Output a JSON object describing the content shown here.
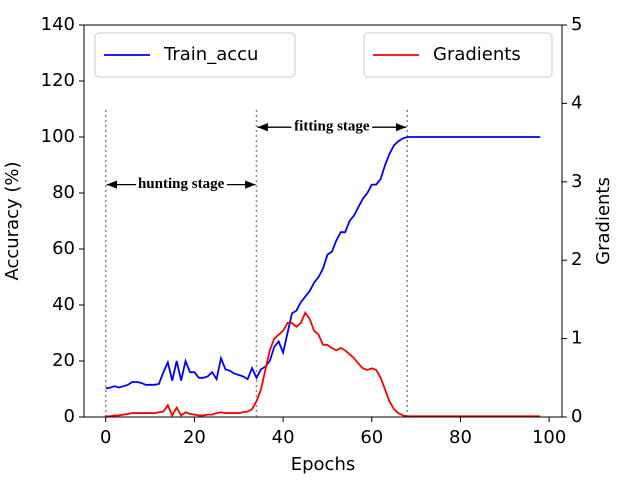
{
  "chart_data": {
    "type": "line",
    "xlabel": "Epochs",
    "ylabel": "Accuracy (%)",
    "y2label": "Gradients",
    "x": [
      0,
      1,
      2,
      3,
      4,
      5,
      6,
      7,
      8,
      9,
      10,
      11,
      12,
      13,
      14,
      15,
      16,
      17,
      18,
      19,
      20,
      21,
      22,
      23,
      24,
      25,
      26,
      27,
      28,
      29,
      30,
      31,
      32,
      33,
      34,
      35,
      36,
      37,
      38,
      39,
      40,
      41,
      42,
      43,
      44,
      45,
      46,
      47,
      48,
      49,
      50,
      51,
      52,
      53,
      54,
      55,
      56,
      57,
      58,
      59,
      60,
      61,
      62,
      63,
      64,
      65,
      66,
      67,
      68,
      69,
      70,
      71,
      72,
      73,
      74,
      75,
      76,
      77,
      78,
      79,
      80,
      81,
      82,
      83,
      84,
      85,
      86,
      87,
      88,
      89,
      90,
      91,
      92,
      93,
      94,
      95,
      96,
      97,
      98
    ],
    "series": [
      {
        "name": "Train_accu",
        "color": "#0000ff",
        "legend": "upper left",
        "values": [
          10.2,
          10.5,
          11,
          10.5,
          11,
          11.5,
          12.5,
          12.5,
          12.2,
          11.5,
          11.5,
          11.5,
          11.8,
          16,
          19.5,
          13,
          20,
          13,
          20,
          16,
          16,
          14,
          14,
          14.5,
          16,
          13.5,
          21,
          17,
          16.5,
          15.5,
          15,
          14.5,
          13.5,
          17.5,
          14,
          17,
          18,
          20,
          25,
          27,
          23,
          30,
          37,
          38,
          41,
          43,
          45,
          48,
          50,
          53,
          58,
          59,
          63,
          66,
          66,
          70,
          72,
          75,
          78,
          80,
          83,
          83,
          85,
          90,
          94,
          97,
          98.5,
          99.5,
          100,
          100,
          100,
          100,
          100,
          100,
          100,
          100,
          100,
          100,
          100,
          100,
          100,
          100,
          100,
          100,
          100,
          100,
          100,
          100,
          100,
          100,
          100,
          100,
          100,
          100,
          100,
          100,
          100,
          100,
          100
        ]
      },
      {
        "name": "Gradients",
        "color": "#ff0000",
        "axis": "y2",
        "legend": "upper right",
        "values": [
          0.01,
          0.01,
          0.02,
          0.02,
          0.03,
          0.04,
          0.05,
          0.05,
          0.05,
          0.05,
          0.05,
          0.05,
          0.06,
          0.07,
          0.15,
          0.02,
          0.12,
          0.02,
          0.06,
          0.04,
          0.03,
          0.02,
          0.02,
          0.03,
          0.03,
          0.05,
          0.06,
          0.05,
          0.05,
          0.05,
          0.05,
          0.06,
          0.07,
          0.1,
          0.2,
          0.35,
          0.6,
          0.85,
          1.0,
          1.05,
          1.1,
          1.2,
          1.2,
          1.15,
          1.2,
          1.33,
          1.25,
          1.1,
          1.05,
          0.92,
          0.92,
          0.88,
          0.85,
          0.88,
          0.85,
          0.8,
          0.75,
          0.68,
          0.62,
          0.6,
          0.62,
          0.6,
          0.5,
          0.35,
          0.2,
          0.1,
          0.05,
          0.02,
          0.01,
          0.01,
          0.01,
          0.01,
          0.01,
          0.01,
          0.01,
          0.01,
          0.01,
          0.01,
          0.01,
          0.01,
          0.01,
          0.01,
          0.01,
          0.01,
          0.01,
          0.01,
          0.01,
          0.01,
          0.01,
          0.01,
          0.01,
          0.01,
          0.01,
          0.01,
          0.01,
          0.01,
          0.01,
          0.01,
          0.01
        ]
      }
    ],
    "stage_lines": {
      "x": [
        0,
        34,
        68
      ],
      "top": 110
    },
    "annotations": [
      {
        "text": "hunting stage",
        "x": [
          0,
          34
        ],
        "y": 83
      },
      {
        "text": "fitting stage",
        "x": [
          34,
          68
        ],
        "y": 103.5
      }
    ],
    "xlim": [
      -4.9,
      102.9
    ],
    "xticks": [
      0,
      20,
      40,
      60,
      80,
      100
    ],
    "ylim": [
      0,
      140
    ],
    "yticks": [
      0,
      20,
      40,
      60,
      80,
      100,
      120,
      140
    ],
    "y2lim": [
      0,
      5
    ],
    "y2ticks": [
      0,
      1,
      2,
      3,
      4,
      5
    ]
  }
}
